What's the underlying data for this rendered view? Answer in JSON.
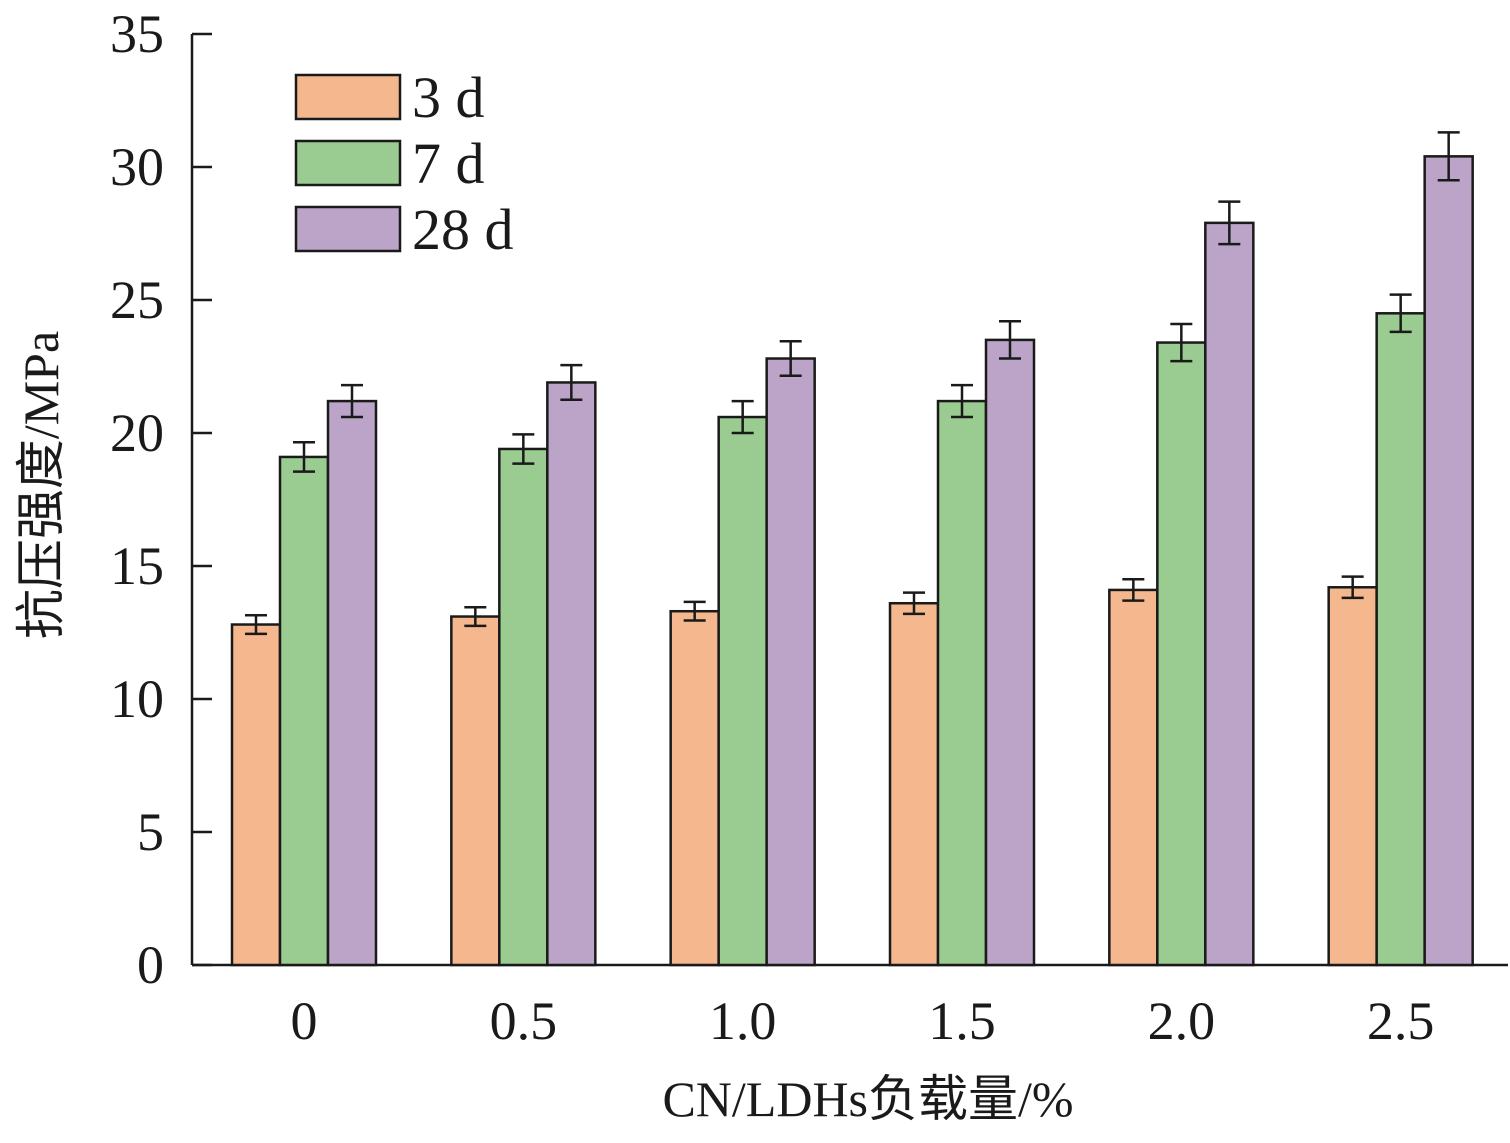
{
  "chart_data": {
    "type": "bar",
    "xlabel": "CN/LDHs负载量/%",
    "ylabel": "抗压强度/MPa",
    "categories": [
      "0",
      "0.5",
      "1.0",
      "1.5",
      "2.0",
      "2.5"
    ],
    "ylim": [
      0,
      35
    ],
    "yticks": [
      0,
      5,
      10,
      15,
      20,
      25,
      30,
      35
    ],
    "ytick_labels": [
      "0",
      "5",
      "10",
      "15",
      "20",
      "25",
      "30",
      "35"
    ],
    "grid": false,
    "legend_position": "top-left",
    "series": [
      {
        "name": "3 d",
        "color": "#F5B78E",
        "values": [
          12.8,
          13.1,
          13.3,
          13.6,
          14.1,
          14.2
        ],
        "errors": [
          0.35,
          0.35,
          0.35,
          0.4,
          0.4,
          0.4
        ]
      },
      {
        "name": "7 d",
        "color": "#9ACB90",
        "values": [
          19.1,
          19.4,
          20.6,
          21.2,
          23.4,
          24.5
        ],
        "errors": [
          0.55,
          0.55,
          0.6,
          0.6,
          0.7,
          0.7
        ]
      },
      {
        "name": "28 d",
        "color": "#BBA4C8",
        "values": [
          21.2,
          21.9,
          22.8,
          23.5,
          27.9,
          30.4
        ],
        "errors": [
          0.6,
          0.65,
          0.65,
          0.7,
          0.8,
          0.9
        ]
      }
    ]
  }
}
